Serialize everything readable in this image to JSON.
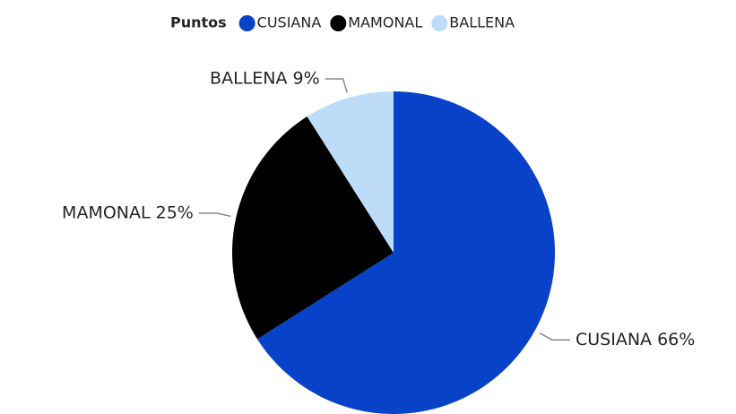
{
  "chart_data": {
    "type": "pie",
    "legend_title": "Puntos",
    "categories": [
      "CUSIANA",
      "MAMONAL",
      "BALLENA"
    ],
    "values": [
      66,
      25,
      9
    ],
    "value_labels": [
      "CUSIANA 66%",
      "MAMONAL 25%",
      "BALLENA 9%"
    ],
    "colors": [
      "#0742c8",
      "#000000",
      "#bcdcf8"
    ],
    "legend_position": "top"
  }
}
